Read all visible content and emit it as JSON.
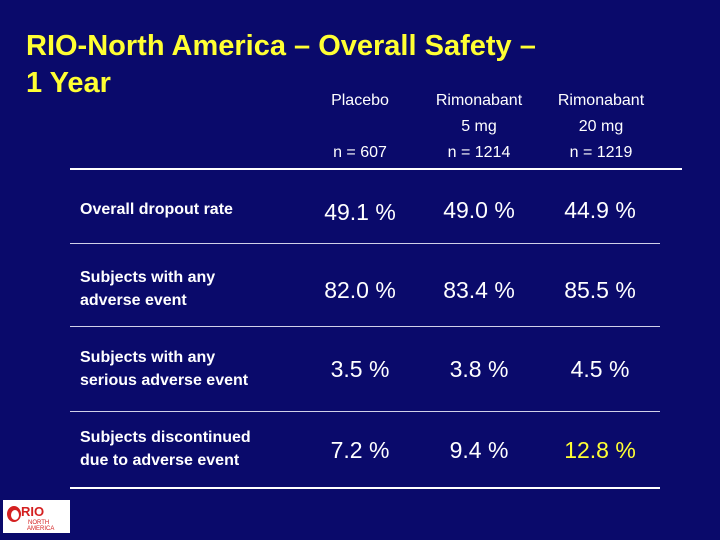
{
  "title": {
    "line1": "RIO-North America – Overall Safety –",
    "line2": "1 Year"
  },
  "columns": [
    {
      "line1": "Placebo",
      "line2": "",
      "n": "n = 607"
    },
    {
      "line1": "Rimonabant",
      "line2": "5 mg",
      "n": "n = 1214"
    },
    {
      "line1": "Rimonabant",
      "line2": "20 mg",
      "n": "n = 1219"
    }
  ],
  "rows": [
    {
      "label_line1": "Overall dropout rate",
      "label_line2": "",
      "values": [
        "49.1 %",
        "49.0 %",
        "44.9 %"
      ]
    },
    {
      "label_line1": "Subjects with any",
      "label_line2": "adverse event",
      "values": [
        "82.0 %",
        "83.4 %",
        "85.5 %"
      ]
    },
    {
      "label_line1": "Subjects with any",
      "label_line2": "serious adverse event",
      "values": [
        "3.5 %",
        "3.8 %",
        "4.5 %"
      ]
    },
    {
      "label_line1": "Subjects discontinued",
      "label_line2": "due to adverse event",
      "values": [
        "7.2 %",
        "9.4 %",
        "12.8 %"
      ]
    }
  ],
  "logo": {
    "line1": "RIO",
    "line2": "NORTH",
    "line3": "AMERICA"
  },
  "colors": {
    "background": "#0a0a6b",
    "title": "#ffff33",
    "text": "#ffffff",
    "highlight": "#ffff33",
    "logo_red": "#d42020"
  }
}
